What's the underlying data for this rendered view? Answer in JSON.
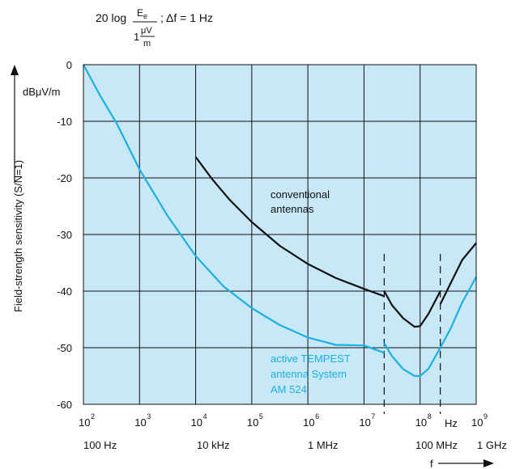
{
  "chart_data": {
    "type": "line",
    "formula": {
      "prefix": "20 log",
      "numerator": "E",
      "numerator_sub": "e",
      "denominator": "1",
      "denominator_frac_num": "μV",
      "denominator_frac_den": "m",
      "suffix": "; Δf = 1 Hz"
    },
    "ylabel": "Field-strength sensitivity (S/N=1)",
    "yunit": "dBμV/m",
    "xunit": "Hz",
    "xlabel": "f",
    "x_scale": "log",
    "xlim_exp": [
      2,
      9
    ],
    "ylim": [
      -60,
      0
    ],
    "y_ticks": [
      "0",
      "-10",
      "-20",
      "-30",
      "-40",
      "-50",
      "-60"
    ],
    "x_ticks": [
      {
        "base": "10",
        "exp": "2"
      },
      {
        "base": "10",
        "exp": "3"
      },
      {
        "base": "10",
        "exp": "4"
      },
      {
        "base": "10",
        "exp": "5"
      },
      {
        "base": "10",
        "exp": "6"
      },
      {
        "base": "10",
        "exp": "7"
      },
      {
        "base": "10",
        "exp": "8"
      },
      {
        "base": "10",
        "exp": "9"
      }
    ],
    "x_freq_labels": [
      "100 Hz",
      "10 kHz",
      "1 MHz",
      "100 MHz",
      "1 GHz"
    ],
    "grid": true,
    "background_color": "#c8e8f8",
    "dashed_markers_exp": [
      7.36,
      8.36
    ],
    "series": [
      {
        "name_lines": [
          "conventional",
          "antennas"
        ],
        "color": "#111111",
        "segments": [
          [
            [
              4.0,
              -16.3
            ],
            [
              4.3,
              -20.3
            ],
            [
              4.6,
              -23.8
            ],
            [
              5.0,
              -27.8
            ],
            [
              5.5,
              -32.0
            ],
            [
              6.0,
              -35.2
            ],
            [
              6.5,
              -37.7
            ],
            [
              7.0,
              -39.6
            ],
            [
              7.36,
              -40.9
            ]
          ],
          [
            [
              7.36,
              -40.0
            ],
            [
              7.5,
              -42.5
            ],
            [
              7.7,
              -44.8
            ],
            [
              7.9,
              -46.3
            ],
            [
              8.0,
              -46.2
            ],
            [
              8.15,
              -44.0
            ],
            [
              8.36,
              -40.0
            ]
          ],
          [
            [
              8.36,
              -42.3
            ],
            [
              8.55,
              -38.5
            ],
            [
              8.75,
              -34.5
            ],
            [
              9.0,
              -31.5
            ]
          ]
        ]
      },
      {
        "name_lines": [
          "active TEMPEST",
          "antenna System",
          "AM 524"
        ],
        "color": "#1ab0e0",
        "segments": [
          [
            [
              2.0,
              0.0
            ],
            [
              2.3,
              -5.5
            ],
            [
              2.6,
              -10.5
            ],
            [
              3.0,
              -18.5
            ],
            [
              3.5,
              -26.7
            ],
            [
              4.0,
              -33.8
            ],
            [
              4.5,
              -39.2
            ],
            [
              5.0,
              -43.0
            ],
            [
              5.5,
              -46.0
            ],
            [
              6.0,
              -48.2
            ],
            [
              6.5,
              -49.5
            ],
            [
              7.0,
              -49.6
            ],
            [
              7.36,
              -50.9
            ]
          ],
          [
            [
              7.36,
              -49.2
            ],
            [
              7.5,
              -51.5
            ],
            [
              7.7,
              -53.8
            ],
            [
              7.9,
              -55.0
            ],
            [
              8.0,
              -55.0
            ],
            [
              8.15,
              -53.7
            ],
            [
              8.36,
              -50.0
            ]
          ],
          [
            [
              8.36,
              -50.0
            ],
            [
              8.55,
              -46.5
            ],
            [
              8.75,
              -42.0
            ],
            [
              9.0,
              -37.5
            ]
          ]
        ]
      }
    ]
  }
}
